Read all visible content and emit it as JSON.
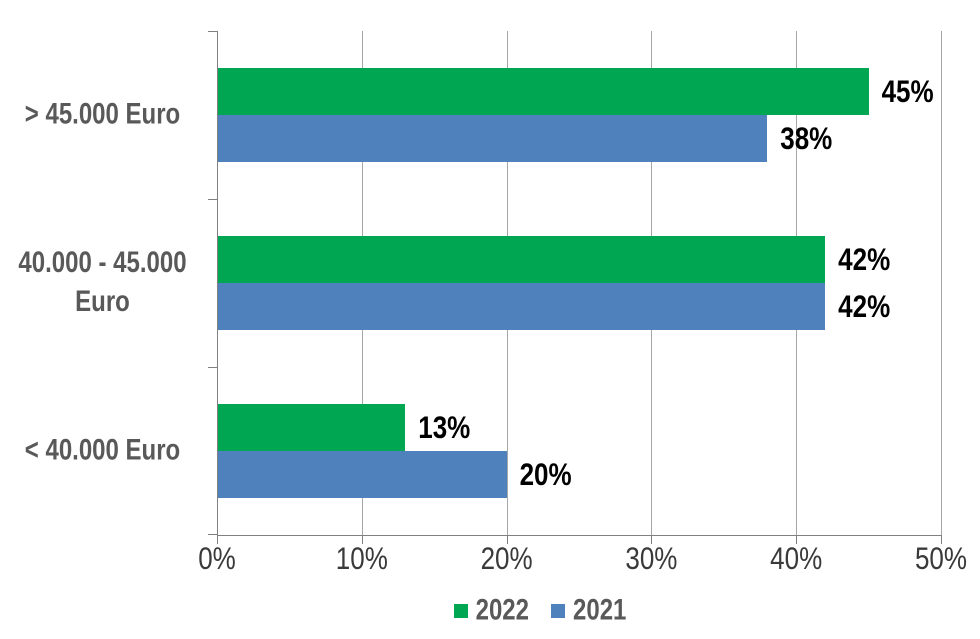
{
  "chart_data": {
    "type": "bar",
    "orientation": "horizontal",
    "categories": [
      "> 45.000 Euro",
      "40.000 - 45.000 Euro",
      "< 40.000 Euro"
    ],
    "series": [
      {
        "name": "2022",
        "color": "#00A651",
        "values": [
          45,
          42,
          13
        ],
        "labels": [
          "45%",
          "42%",
          "13%"
        ]
      },
      {
        "name": "2021",
        "color": "#4F81BD",
        "values": [
          38,
          42,
          20
        ],
        "labels": [
          "38%",
          "42%",
          "20%"
        ]
      }
    ],
    "x_axis": {
      "min": 0,
      "max": 50,
      "ticks": [
        0,
        10,
        20,
        30,
        40,
        50
      ],
      "tick_labels": [
        "0%",
        "10%",
        "20%",
        "30%",
        "40%",
        "50%"
      ]
    },
    "legend": {
      "position": "bottom",
      "entries": [
        {
          "label": "2022",
          "color": "#00A651"
        },
        {
          "label": "2021",
          "color": "#4F81BD"
        }
      ]
    },
    "grid": true,
    "colors": {
      "grid": "#A6A6A6",
      "axis": "#808080",
      "category_text": "#595959",
      "tick_text": "#3A3A3A",
      "value_text": "#000000",
      "legend_text": "#595959",
      "background": "#FFFFFF"
    }
  }
}
